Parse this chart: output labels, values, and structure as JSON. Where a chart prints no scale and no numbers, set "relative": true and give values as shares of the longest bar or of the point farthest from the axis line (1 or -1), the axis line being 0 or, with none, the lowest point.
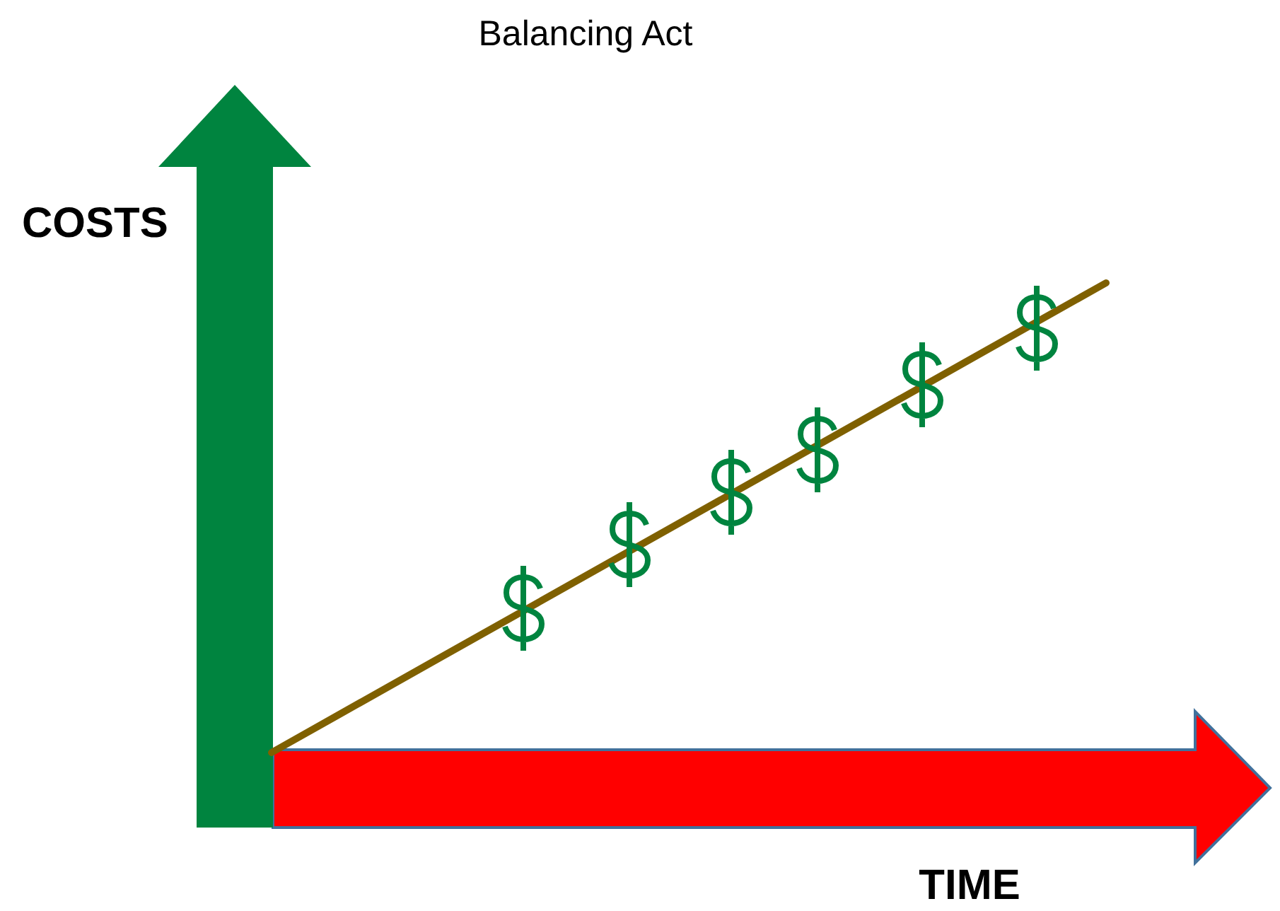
{
  "chart_data": {
    "type": "line",
    "title": "Balancing Act",
    "xlabel": "TIME",
    "ylabel": "COSTS",
    "relative": true,
    "tick_labels": false,
    "categories": [
      null,
      null,
      null,
      null,
      null,
      null,
      null
    ],
    "values": [
      0,
      0.2,
      0.4,
      0.6,
      0.8,
      1,
      null
    ],
    "color": "#7f6000"
  }
}
